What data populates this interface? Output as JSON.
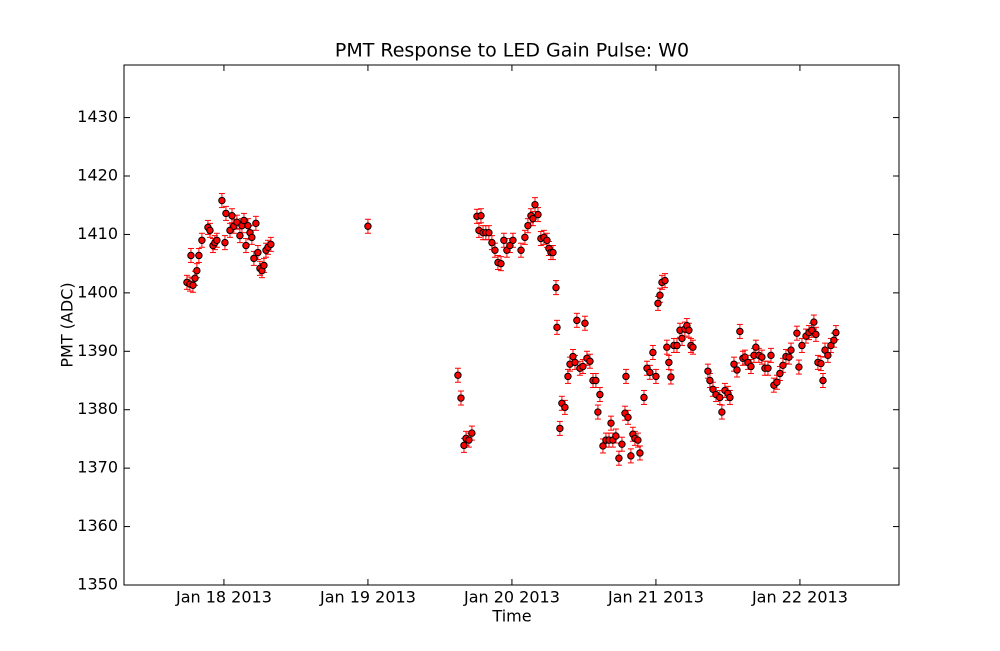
{
  "chart_data": {
    "type": "errorbar",
    "title": "PMT Response to LED Gain Pulse: W0",
    "x_label": "Time",
    "y_label": "PMT (ADC)",
    "xlim": [
      -0.694,
      4.688
    ],
    "ylim": [
      1350,
      1439
    ],
    "xticks": [
      {
        "value": 0,
        "label": "Jan 18 2013"
      },
      {
        "value": 1,
        "label": "Jan 19 2013"
      },
      {
        "value": 2,
        "label": "Jan 20 2013"
      },
      {
        "value": 3,
        "label": "Jan 21 2013"
      },
      {
        "value": 4,
        "label": "Jan 22 2013"
      }
    ],
    "yticks": [
      1350,
      1360,
      1370,
      1380,
      1390,
      1400,
      1410,
      1420,
      1430
    ],
    "color": "#ff0000",
    "edge_color": "#000000",
    "error": 1.2,
    "x": [
      -0.257,
      -0.236,
      -0.229,
      -0.215,
      -0.201,
      -0.188,
      -0.174,
      -0.153,
      -0.111,
      -0.097,
      -0.076,
      -0.063,
      -0.049,
      -0.014,
      0.007,
      0.014,
      0.042,
      0.056,
      0.069,
      0.09,
      0.111,
      0.125,
      0.139,
      0.153,
      0.167,
      0.181,
      0.194,
      0.208,
      0.222,
      0.236,
      0.25,
      0.264,
      0.278,
      0.292,
      0.306,
      0.326,
      1.0,
      1.625,
      1.646,
      1.667,
      1.681,
      1.701,
      1.722,
      1.757,
      1.771,
      1.785,
      1.799,
      1.819,
      1.84,
      1.861,
      1.882,
      1.903,
      1.924,
      1.944,
      1.965,
      1.986,
      2.007,
      2.063,
      2.09,
      2.111,
      2.132,
      2.146,
      2.16,
      2.181,
      2.201,
      2.222,
      2.243,
      2.257,
      2.271,
      2.285,
      2.306,
      2.313,
      2.333,
      2.347,
      2.368,
      2.389,
      2.403,
      2.424,
      2.438,
      2.451,
      2.472,
      2.493,
      2.507,
      2.521,
      2.542,
      2.563,
      2.583,
      2.597,
      2.611,
      2.632,
      2.653,
      2.674,
      2.688,
      2.701,
      2.722,
      2.743,
      2.764,
      2.785,
      2.792,
      2.806,
      2.826,
      2.84,
      2.854,
      2.875,
      2.889,
      2.917,
      2.938,
      2.958,
      2.979,
      3.0,
      3.014,
      3.028,
      3.042,
      3.063,
      3.076,
      3.09,
      3.104,
      3.125,
      3.146,
      3.167,
      3.181,
      3.201,
      3.215,
      3.229,
      3.243,
      3.257,
      3.361,
      3.375,
      3.396,
      3.417,
      3.444,
      3.458,
      3.479,
      3.5,
      3.514,
      3.542,
      3.563,
      3.583,
      3.604,
      3.618,
      3.639,
      3.66,
      3.681,
      3.694,
      3.715,
      3.736,
      3.757,
      3.778,
      3.799,
      3.819,
      3.84,
      3.861,
      3.882,
      3.903,
      3.924,
      3.938,
      3.979,
      3.993,
      4.014,
      4.042,
      4.063,
      4.083,
      4.097,
      4.111,
      4.125,
      4.146,
      4.16,
      4.174,
      4.194,
      4.215,
      4.236,
      4.25
    ],
    "values": [
      1401.8,
      1401.5,
      1406.4,
      1401.3,
      1402.5,
      1403.8,
      1406.4,
      1409.0,
      1411.2,
      1410.7,
      1408.1,
      1408.6,
      1409.0,
      1415.8,
      1408.6,
      1413.6,
      1410.7,
      1413.2,
      1411.4,
      1412.1,
      1409.8,
      1411.5,
      1412.4,
      1408.1,
      1411.5,
      1410.3,
      1409.5,
      1405.9,
      1411.9,
      1406.9,
      1404.2,
      1403.8,
      1404.7,
      1407.3,
      1407.8,
      1408.3,
      1411.4,
      1385.9,
      1382.0,
      1373.9,
      1375.1,
      1374.8,
      1376.0,
      1413.1,
      1410.7,
      1413.2,
      1410.3,
      1410.3,
      1410.3,
      1408.6,
      1407.3,
      1405.2,
      1405.0,
      1409.0,
      1407.3,
      1408.1,
      1409.0,
      1407.3,
      1409.5,
      1411.5,
      1413.2,
      1412.7,
      1415.1,
      1413.4,
      1409.3,
      1409.5,
      1409.0,
      1407.6,
      1406.9,
      1406.9,
      1400.9,
      1394.1,
      1376.8,
      1381.1,
      1380.4,
      1385.7,
      1387.8,
      1389.1,
      1388.1,
      1395.3,
      1387.1,
      1387.4,
      1394.8,
      1388.8,
      1388.3,
      1385.0,
      1385.0,
      1379.6,
      1382.6,
      1373.8,
      1374.8,
      1374.8,
      1377.7,
      1374.8,
      1375.5,
      1371.7,
      1374.1,
      1379.4,
      1385.7,
      1378.7,
      1372.1,
      1375.8,
      1375.1,
      1374.8,
      1372.6,
      1382.1,
      1387.1,
      1386.4,
      1389.8,
      1385.7,
      1398.2,
      1399.6,
      1401.8,
      1402.1,
      1390.7,
      1388.1,
      1385.6,
      1391.0,
      1391.0,
      1393.6,
      1392.2,
      1393.8,
      1394.4,
      1393.6,
      1391.0,
      1390.7,
      1386.6,
      1385.0,
      1383.5,
      1382.6,
      1382.1,
      1379.6,
      1383.3,
      1382.8,
      1382.1,
      1387.8,
      1386.8,
      1393.4,
      1388.8,
      1389.0,
      1388.1,
      1387.4,
      1389.3,
      1390.7,
      1389.3,
      1389.0,
      1387.1,
      1387.1,
      1389.3,
      1384.2,
      1384.7,
      1386.2,
      1387.6,
      1389.1,
      1389.0,
      1390.2,
      1393.1,
      1387.3,
      1391.0,
      1392.6,
      1393.2,
      1393.6,
      1395.0,
      1392.9,
      1388.1,
      1387.9,
      1385.0,
      1390.2,
      1389.3,
      1391.0,
      1391.9,
      1393.2
    ]
  }
}
